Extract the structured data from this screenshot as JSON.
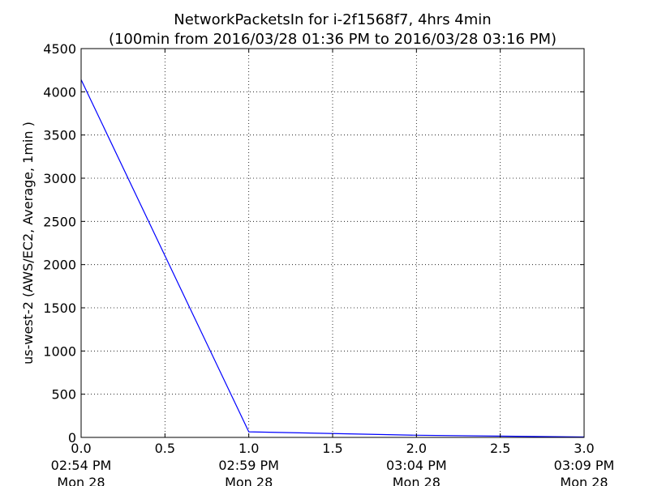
{
  "chart_data": {
    "type": "line",
    "title": "NetworkPacketsIn for i-2f1568f7, 4hrs 4min",
    "subtitle": "(100min from 2016/03/28 01:36 PM to 2016/03/28 03:16 PM)",
    "xlabel": "",
    "ylabel": "us-west-2 (AWS/EC2, Average, 1min )",
    "xlim": [
      0.0,
      3.0
    ],
    "ylim": [
      0,
      4500
    ],
    "grid": true,
    "x_ticks": [
      {
        "value": 0.0,
        "label": "0.0",
        "time": "02:54 PM",
        "day": "Mon 28"
      },
      {
        "value": 0.5,
        "label": "0.5",
        "time": "",
        "day": ""
      },
      {
        "value": 1.0,
        "label": "1.0",
        "time": "02:59 PM",
        "day": "Mon 28"
      },
      {
        "value": 1.5,
        "label": "1.5",
        "time": "",
        "day": ""
      },
      {
        "value": 2.0,
        "label": "2.0",
        "time": "03:04 PM",
        "day": "Mon 28"
      },
      {
        "value": 2.5,
        "label": "2.5",
        "time": "",
        "day": ""
      },
      {
        "value": 3.0,
        "label": "3.0",
        "time": "03:09 PM",
        "day": "Mon 28"
      }
    ],
    "y_ticks": [
      0,
      500,
      1000,
      1500,
      2000,
      2500,
      3000,
      3500,
      4000,
      4500
    ],
    "series": [
      {
        "color": "#0000ff",
        "x": [
          0.0,
          1.0,
          2.0,
          3.0
        ],
        "y": [
          4140,
          65,
          25,
          5
        ]
      }
    ]
  }
}
